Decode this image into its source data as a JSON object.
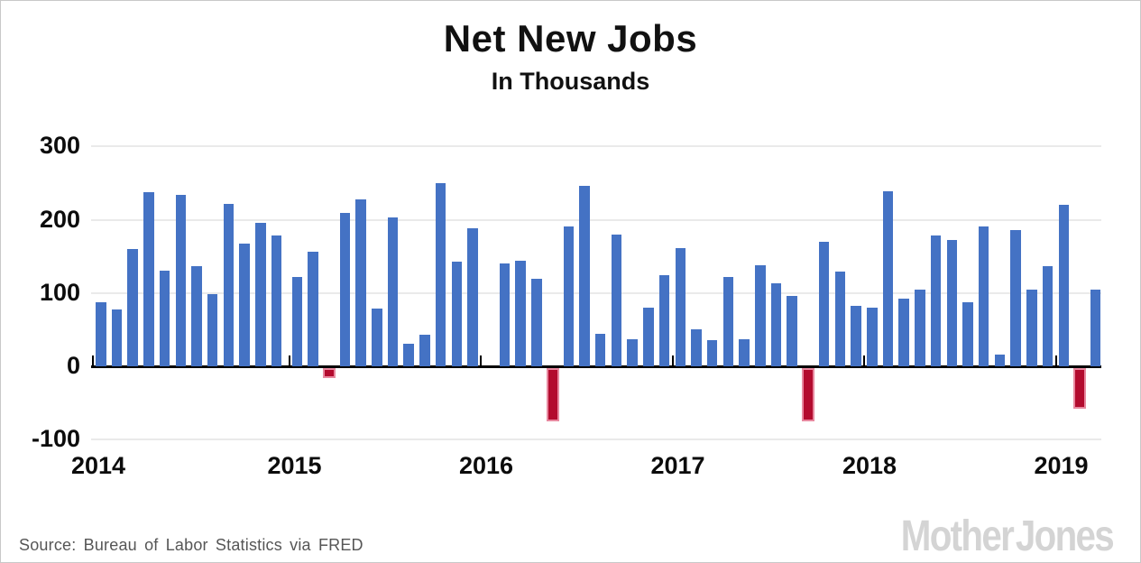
{
  "footer": {
    "source": "Source: Bureau of Labor Statistics via FRED",
    "logo": "Mother Jones"
  },
  "colors": {
    "positive_bar": "#4472c4",
    "negative_bar_fill": "#b30b2e",
    "negative_bar_border": "#e8889f",
    "gridline": "#eaeaea",
    "axis": "#000000",
    "source_text": "#565656",
    "logo_text": "#d4d4d4"
  },
  "chart_data": {
    "type": "bar",
    "title": "Net New Jobs",
    "subtitle": "In Thousands",
    "unit": "thousands of jobs per month",
    "ylim": [
      -100,
      300
    ],
    "grid": "horizontal",
    "y_axis": {
      "tick_values": [
        300,
        200,
        100,
        0,
        -100
      ],
      "tick_labels": [
        "300",
        "200",
        "100",
        "0",
        "-100"
      ]
    },
    "x_axis": {
      "tick_labels": [
        "2014",
        "2015",
        "2016",
        "2017",
        "2018",
        "2019"
      ]
    },
    "negative_bars_highlighted_red": true,
    "years": [
      {
        "label": "2014",
        "values": [
          87,
          78,
          160,
          238,
          131,
          234,
          137,
          98,
          222,
          168,
          196,
          179
        ]
      },
      {
        "label": "2015",
        "values": [
          122,
          157,
          -15,
          209,
          228,
          79,
          203,
          31,
          43,
          250,
          143,
          188
        ]
      },
      {
        "label": "2016",
        "values": [
          null,
          141,
          144,
          120,
          -75,
          191,
          246,
          44,
          180,
          37,
          80,
          124
        ]
      },
      {
        "label": "2017",
        "values": [
          161,
          50,
          36,
          122,
          37,
          138,
          113,
          96,
          -75,
          170,
          129,
          82
        ]
      },
      {
        "label": "2018",
        "values": [
          80,
          239,
          92,
          105,
          179,
          172,
          87,
          191,
          16,
          186,
          105,
          137
        ]
      },
      {
        "label": "2019",
        "values": [
          221,
          -57,
          105
        ]
      }
    ]
  }
}
